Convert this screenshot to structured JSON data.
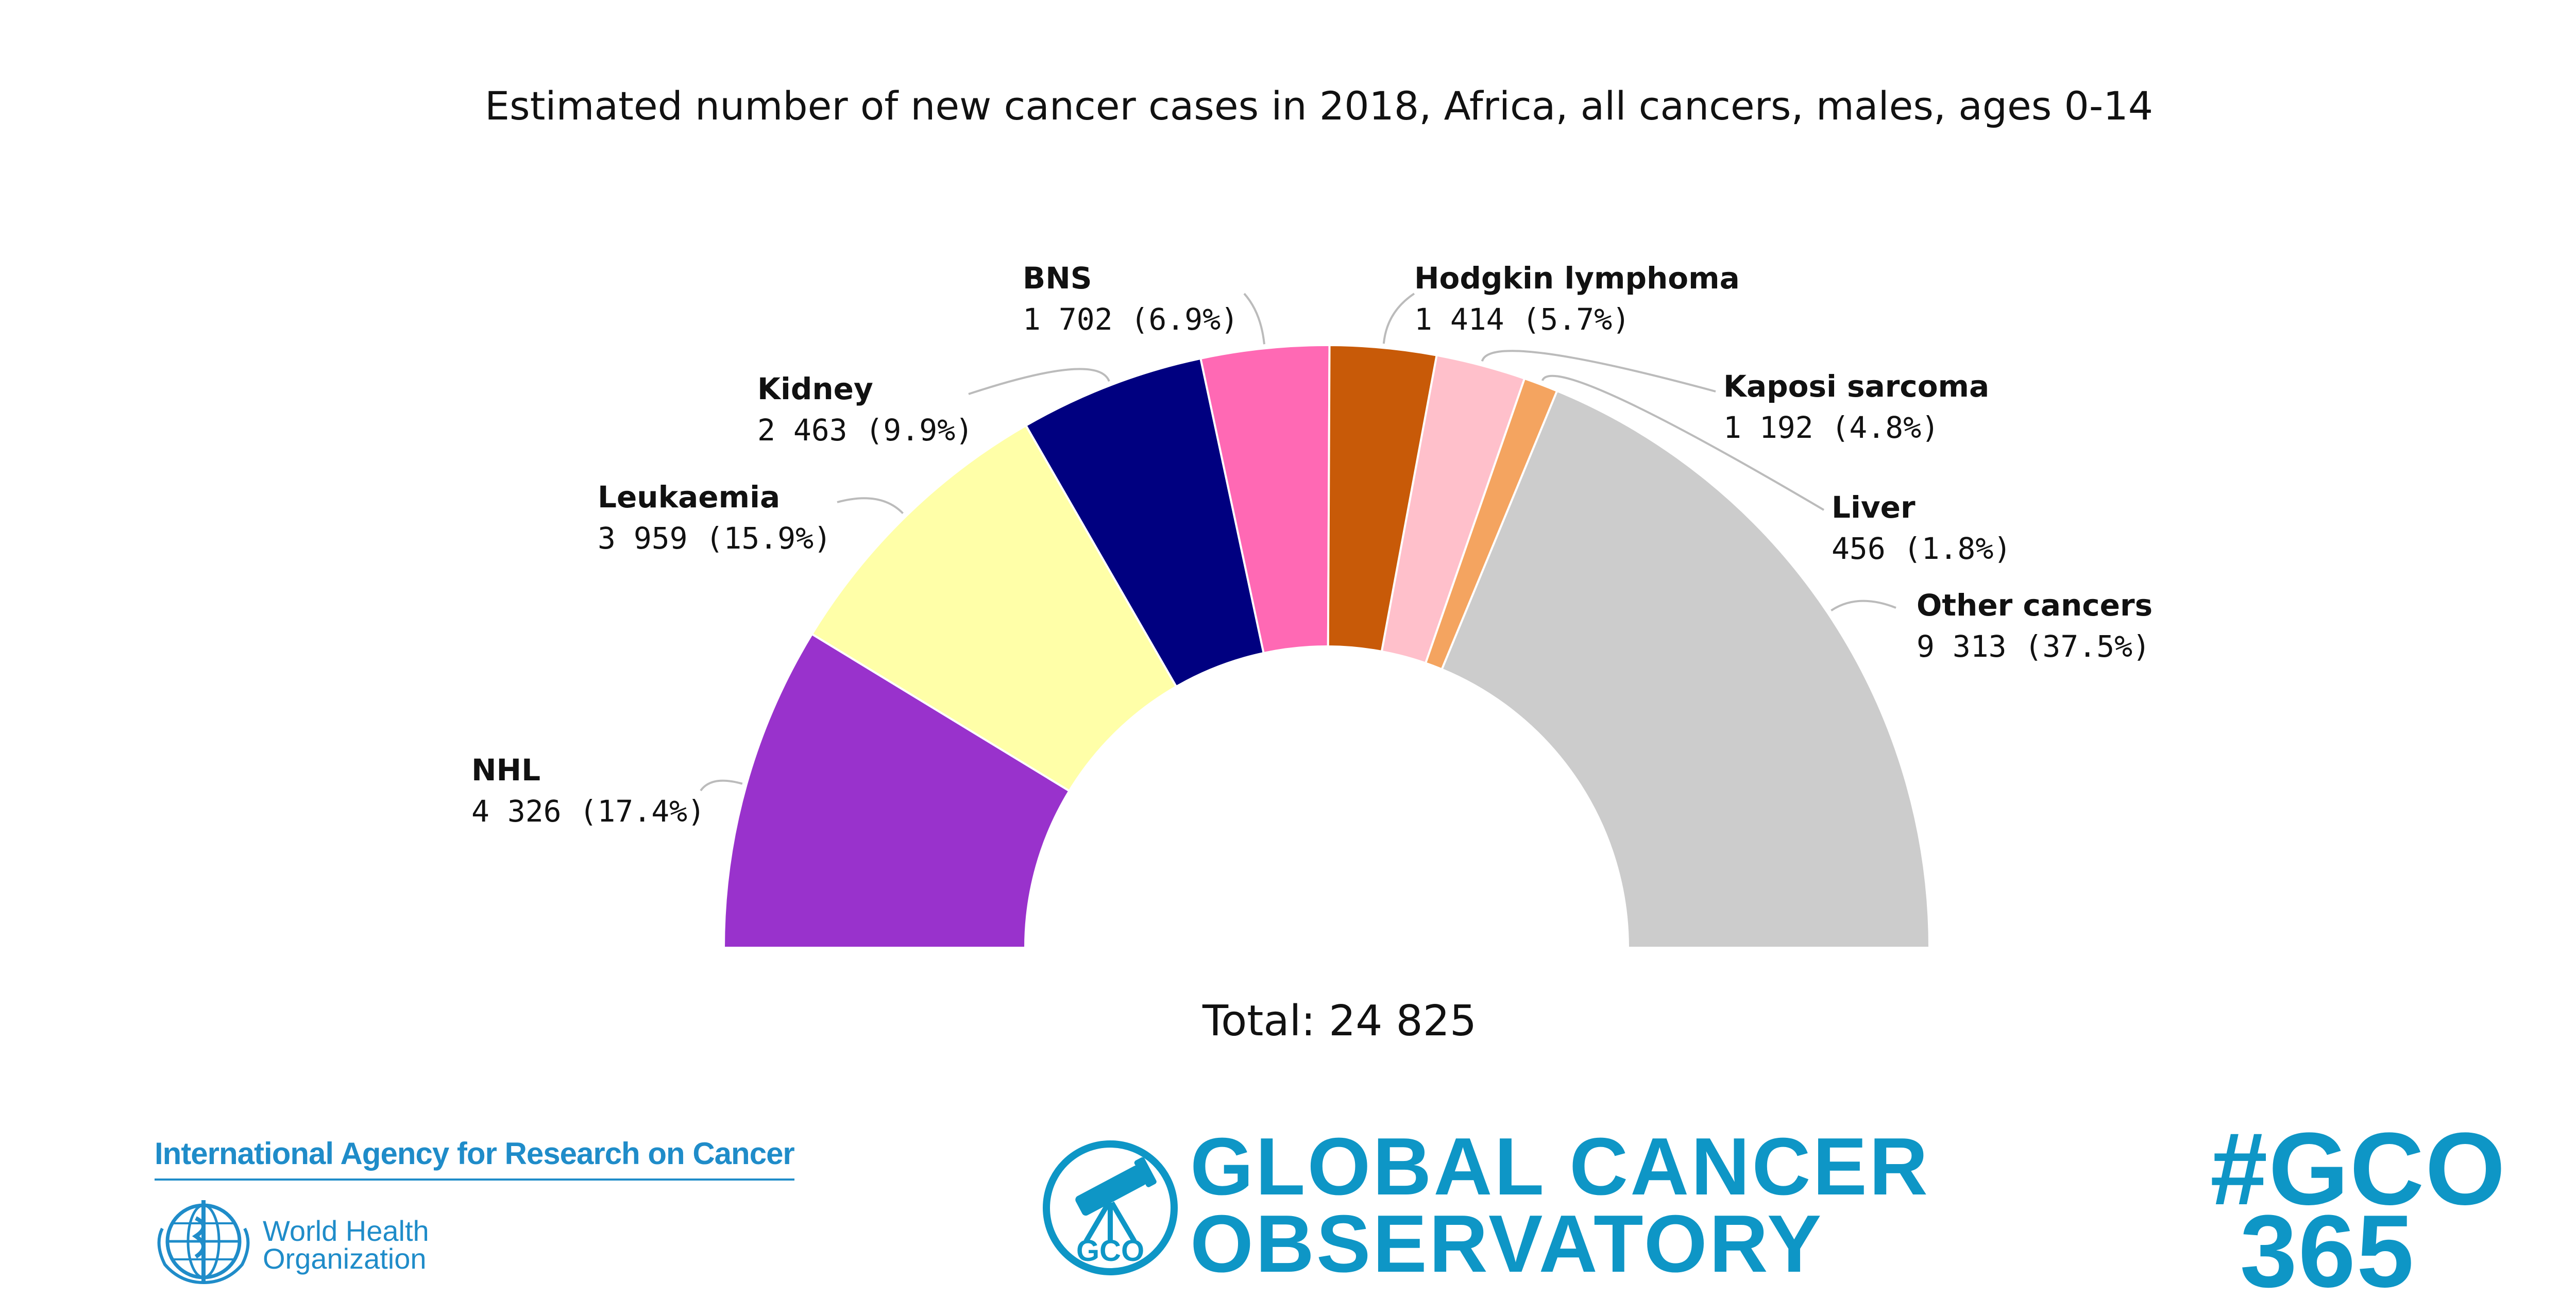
{
  "chart_data": {
    "type": "pie",
    "variant": "half-donut",
    "title": "Estimated number of new cancer cases in 2018, Africa, all cancers, males, ages 0-14",
    "total_label": "Total: 24 825",
    "total": 24825,
    "slices": [
      {
        "name": "NHL",
        "value": 4326,
        "value_text": "4 326 (17.4%)",
        "color": "#9932cc"
      },
      {
        "name": "Leukaemia",
        "value": 3959,
        "value_text": "3 959 (15.9%)",
        "color": "#ffffa8"
      },
      {
        "name": "Kidney",
        "value": 2463,
        "value_text": "2 463 (9.9%)",
        "color": "#000080"
      },
      {
        "name": "BNS",
        "value": 1702,
        "value_text": "1 702 (6.9%)",
        "color": "#ff69b4"
      },
      {
        "name": "Hodgkin lymphoma",
        "value": 1414,
        "value_text": "1 414 (5.7%)",
        "color": "#c85a08"
      },
      {
        "name": "Kaposi sarcoma",
        "value": 1192,
        "value_text": "1 192 (4.8%)",
        "color": "#ffc0cb"
      },
      {
        "name": "Liver",
        "value": 456,
        "value_text": "456 (1.8%)",
        "color": "#f4a460"
      },
      {
        "name": "Other cancers",
        "value": 9313,
        "value_text": "9 313 (37.5%)",
        "color": "#cccccc"
      }
    ]
  },
  "footer": {
    "iarc": "International Agency for Research on Cancer",
    "who": "World Health\nOrganization",
    "gco_badge": "GCO",
    "gco": "GLOBAL CANCER\nOBSERVATORY",
    "hashtag": "#GCO\n 365"
  },
  "colors": {
    "brand_blue": "#0e96c6",
    "iarc_blue": "#1f8cc9"
  },
  "icons": {
    "who": "who-emblem-icon",
    "gco": "telescope-icon"
  }
}
